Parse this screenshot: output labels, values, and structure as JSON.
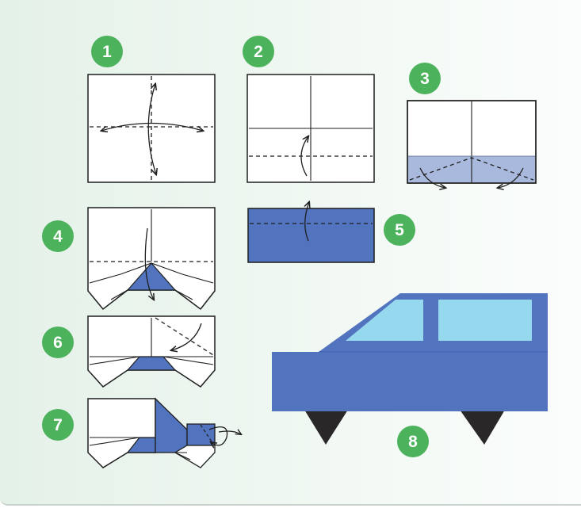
{
  "steps": [
    {
      "number": "1"
    },
    {
      "number": "2"
    },
    {
      "number": "3"
    },
    {
      "number": "4"
    },
    {
      "number": "5"
    },
    {
      "number": "6"
    },
    {
      "number": "7"
    },
    {
      "number": "8"
    }
  ],
  "colors": {
    "badge": "#4cb25c",
    "paper_blue": "#5274bf",
    "paper_light_blue": "#a9b9dd",
    "window": "#96d9ee",
    "wheel": "#2a2728",
    "line": "#1e1e1e"
  }
}
